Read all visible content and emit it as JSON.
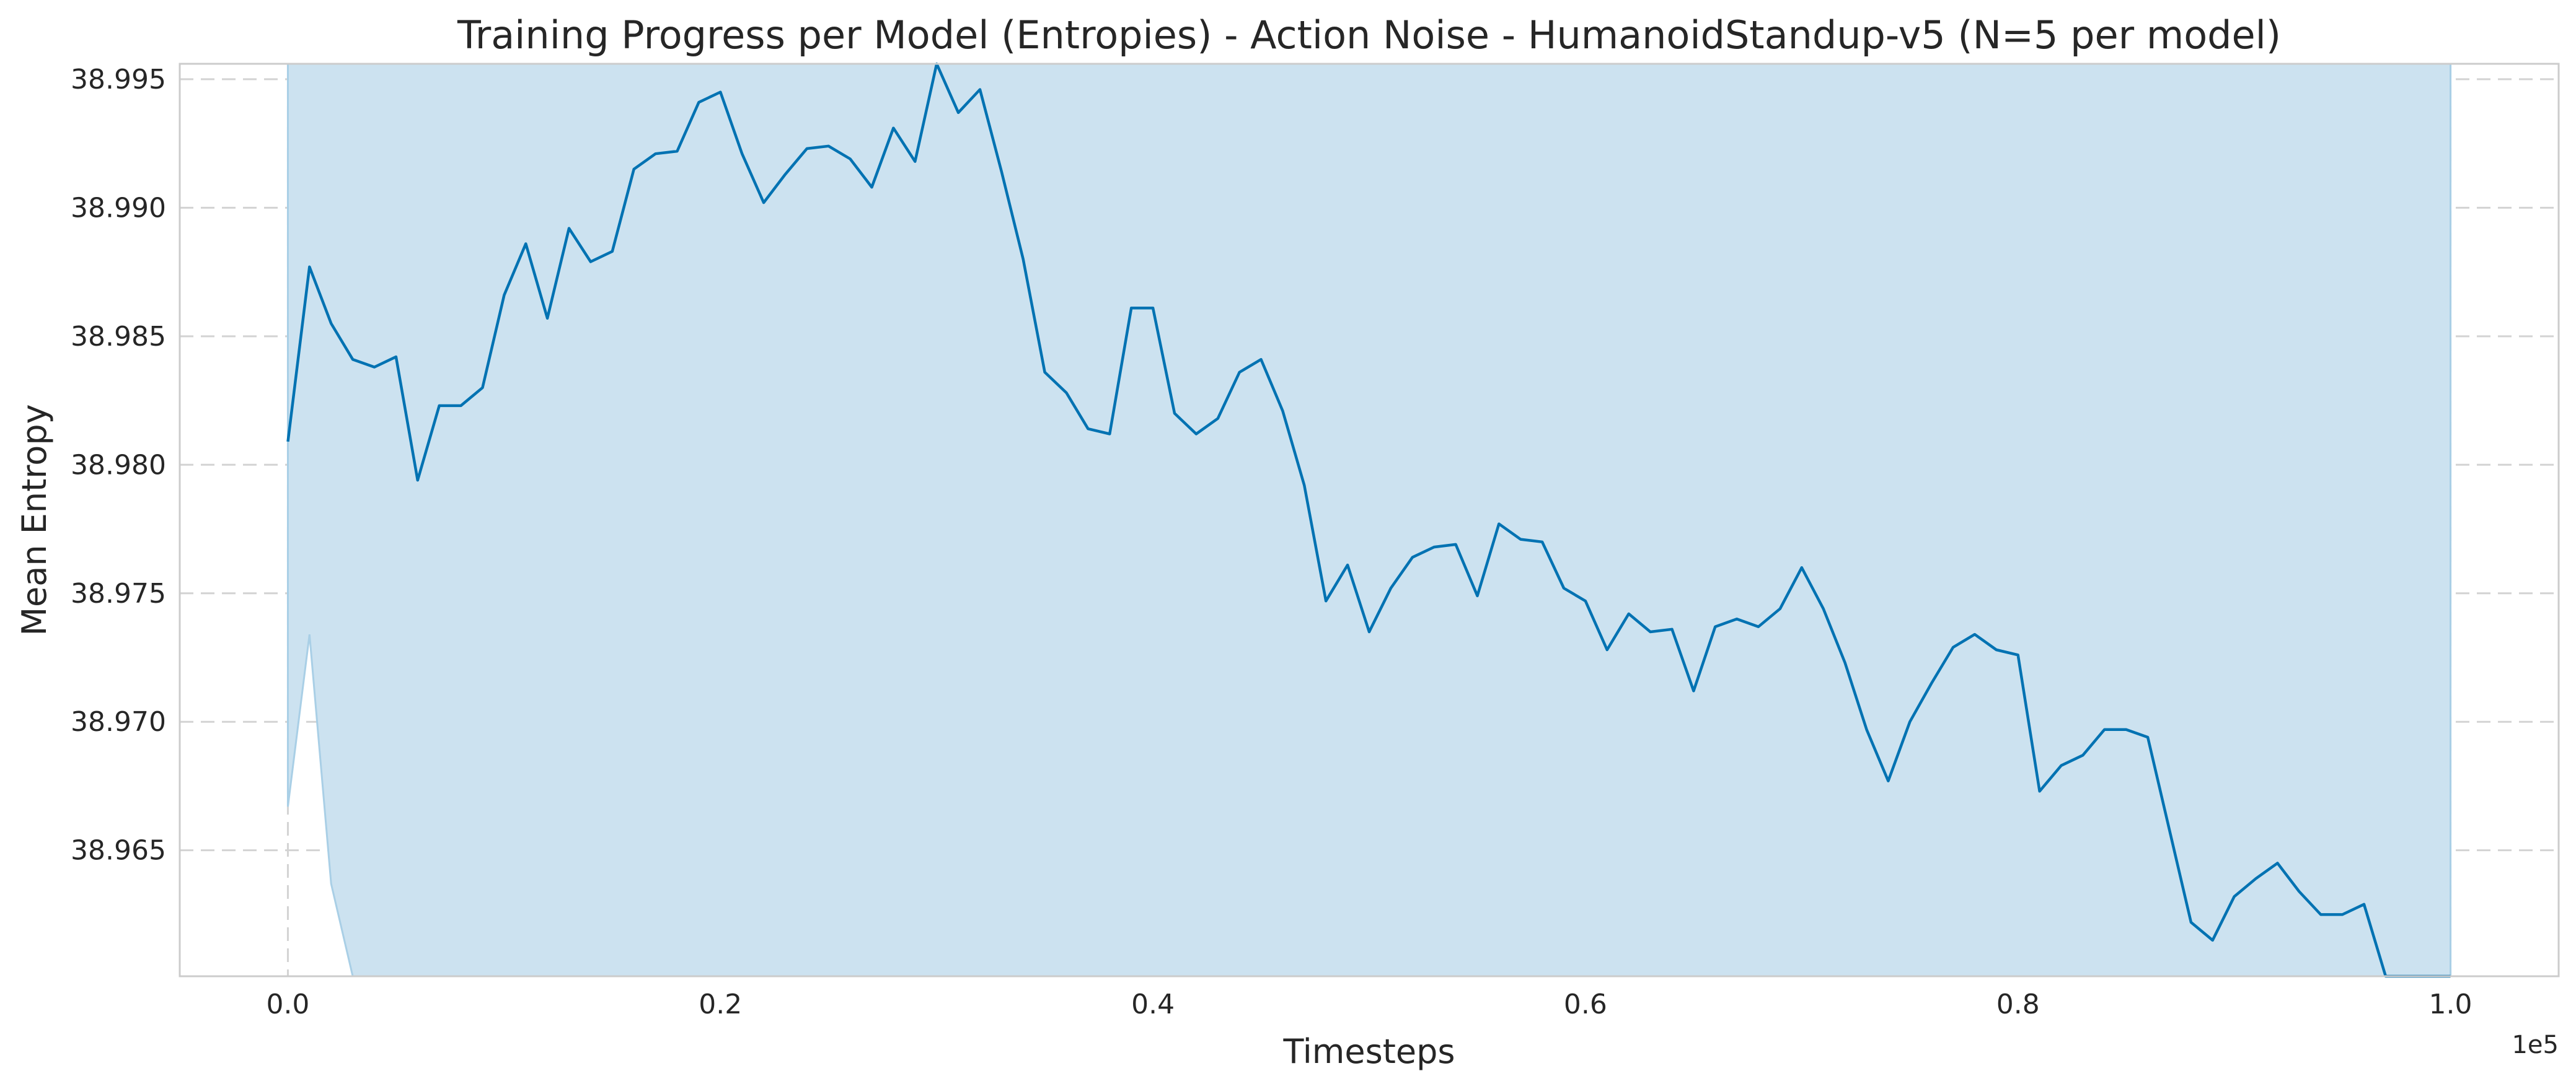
{
  "chart_data": {
    "type": "line",
    "title": "Training Progress per Model (Entropies) - Action Noise - HumanoidStandup-v5 (N=5 per model)",
    "xlabel": "Timesteps",
    "ylabel": "Mean Entropy",
    "x_offset_label": "1e5",
    "xlim": [
      -0.05,
      1.05
    ],
    "ylim": [
      38.9601,
      38.9956
    ],
    "xticks": [
      0.0,
      0.2,
      0.4,
      0.6,
      0.8,
      1.0
    ],
    "xtick_labels": [
      "0.0",
      "0.2",
      "0.4",
      "0.6",
      "0.8",
      "1.0"
    ],
    "yticks": [
      38.965,
      38.97,
      38.975,
      38.98,
      38.985,
      38.99,
      38.995
    ],
    "ytick_labels": [
      "38.965",
      "38.970",
      "38.975",
      "38.980",
      "38.985",
      "38.990",
      "38.995"
    ],
    "grid": true,
    "colors": {
      "line": "#0072B2",
      "band": "#cce2f0",
      "band_edge": "#a9cfe6"
    },
    "series": [
      {
        "x": [
          0.0,
          0.01,
          0.02,
          0.03,
          0.04,
          0.05,
          0.06,
          0.07,
          0.08,
          0.09,
          0.1,
          0.11,
          0.12,
          0.13,
          0.14,
          0.15,
          0.16,
          0.17,
          0.18,
          0.19,
          0.2,
          0.21,
          0.22,
          0.23,
          0.24,
          0.25,
          0.26,
          0.27,
          0.28,
          0.29,
          0.3,
          0.31,
          0.32,
          0.33,
          0.34,
          0.35,
          0.36,
          0.37,
          0.38,
          0.39,
          0.4,
          0.41,
          0.42,
          0.43,
          0.44,
          0.45,
          0.46,
          0.47,
          0.48,
          0.49,
          0.5,
          0.51,
          0.52,
          0.53,
          0.54,
          0.55,
          0.56,
          0.57,
          0.58,
          0.59,
          0.6,
          0.61,
          0.62,
          0.63,
          0.64,
          0.65,
          0.66,
          0.67,
          0.68,
          0.69,
          0.7,
          0.71,
          0.72,
          0.73,
          0.74,
          0.75,
          0.76,
          0.77,
          0.78,
          0.79,
          0.8,
          0.81,
          0.82,
          0.83,
          0.84,
          0.85,
          0.86,
          0.87,
          0.88,
          0.89,
          0.9,
          0.91,
          0.92,
          0.93,
          0.94,
          0.95,
          0.96,
          0.97,
          0.98,
          0.99,
          1.0
        ],
        "mean": [
          38.9809,
          38.9877,
          38.9855,
          38.9841,
          38.9838,
          38.9842,
          38.9794,
          38.9823,
          38.9823,
          38.983,
          38.9866,
          38.9886,
          38.9857,
          38.9892,
          38.9879,
          38.9883,
          38.9915,
          38.9921,
          38.9922,
          38.9941,
          38.9945,
          38.9921,
          38.9902,
          38.9913,
          38.9923,
          38.9924,
          38.9919,
          38.9908,
          38.9931,
          38.9918,
          38.9956,
          38.9937,
          38.9946,
          38.9914,
          38.988,
          38.9836,
          38.9828,
          38.9814,
          38.9812,
          38.9861,
          38.9861,
          38.982,
          38.9812,
          38.9818,
          38.9836,
          38.9841,
          38.9821,
          38.9792,
          38.9747,
          38.9761,
          38.9735,
          38.9752,
          38.9764,
          38.9768,
          38.9769,
          38.9749,
          38.9777,
          38.9771,
          38.977,
          38.9752,
          38.9747,
          38.9728,
          38.9742,
          38.9735,
          38.9736,
          38.9712,
          38.9737,
          38.974,
          38.9737,
          38.9744,
          38.976,
          38.9744,
          38.9723,
          38.9697,
          38.9677,
          38.97,
          38.9715,
          38.9729,
          38.9734,
          38.9728,
          38.9726,
          38.9673,
          38.9683,
          38.9687,
          38.9697,
          38.9697,
          38.9694,
          38.9658,
          38.9622,
          38.9615,
          38.9632,
          38.9639,
          38.9645,
          38.9634,
          38.9625,
          38.9625,
          38.9629,
          38.9601,
          38.9601,
          38.9601,
          38.9601
        ],
        "band_upper": 38.9956,
        "band_lower_visible": {
          "x": [
            0.0,
            0.01,
            0.02,
            0.03
          ],
          "y": [
            38.9667,
            38.9734,
            38.9637,
            38.9601
          ]
        }
      }
    ]
  }
}
